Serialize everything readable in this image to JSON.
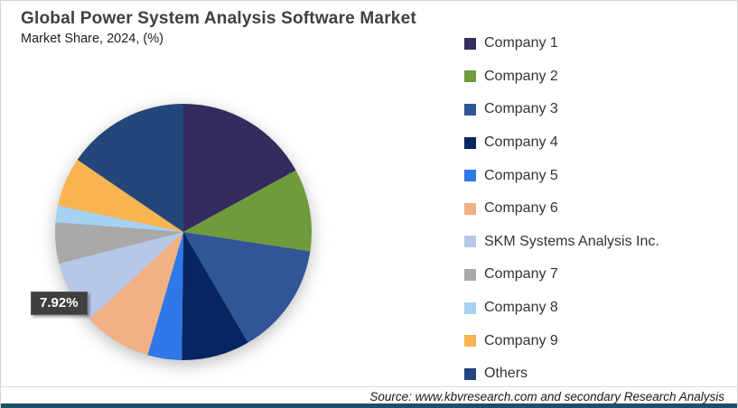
{
  "header": {
    "title": "Global Power System Analysis Software Market",
    "subtitle": "Market Share, 2024, (%)"
  },
  "chart_data": {
    "type": "pie",
    "title": "Global Power System Analysis Software Market",
    "subtitle": "Market Share, 2024, (%)",
    "unit": "%",
    "start_angle_deg": 0,
    "direction": "clockwise",
    "legend_position": "right",
    "slices": [
      {
        "label": "Company 1",
        "value": 17.0,
        "color": "#342B5F"
      },
      {
        "label": "Company 2",
        "value": 10.4,
        "color": "#6F9B3D"
      },
      {
        "label": "Company 3",
        "value": 14.2,
        "color": "#315697"
      },
      {
        "label": "Company 4",
        "value": 8.6,
        "color": "#062561"
      },
      {
        "label": "Company 5",
        "value": 4.3,
        "color": "#2F78E8"
      },
      {
        "label": "Company 6",
        "value": 8.6,
        "color": "#F1B185"
      },
      {
        "label": "SKM Systems Analysis Inc.",
        "value": 7.92,
        "color": "#B7C7E8"
      },
      {
        "label": "Company 7",
        "value": 5.2,
        "color": "#A9A9A9"
      },
      {
        "label": "Company 8",
        "value": 2.1,
        "color": "#A5D1F2"
      },
      {
        "label": "Company 9",
        "value": 6.2,
        "color": "#F9B450"
      },
      {
        "label": "Others",
        "value": 15.48,
        "color": "#24477B"
      }
    ],
    "data_label": {
      "text": "7.92%",
      "slice": "SKM Systems Analysis Inc."
    }
  },
  "footer": {
    "source": "Source: www.kbvresearch.com and secondary Research Analysis",
    "accent_bar_color": "#1E4F66"
  }
}
